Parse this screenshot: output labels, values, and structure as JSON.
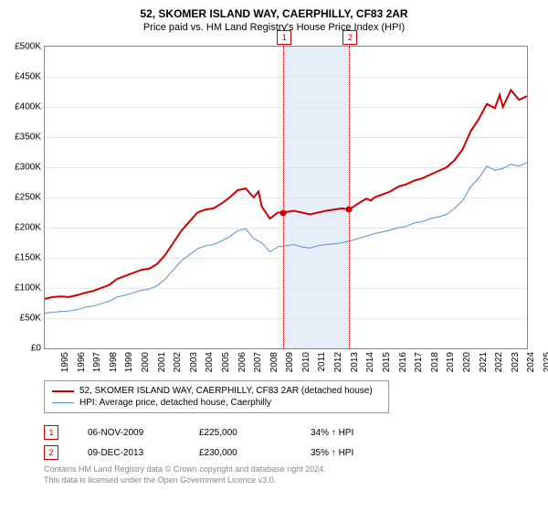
{
  "title": "52, SKOMER ISLAND WAY, CAERPHILLY, CF83 2AR",
  "subtitle": "Price paid vs. HM Land Registry's House Price Index (HPI)",
  "chart": {
    "type": "line",
    "ylim": [
      0,
      500000
    ],
    "ytick_step": 50000,
    "y_labels": [
      "£0",
      "£50K",
      "£100K",
      "£150K",
      "£200K",
      "£250K",
      "£300K",
      "£350K",
      "£400K",
      "£450K",
      "£500K"
    ],
    "x_years": [
      1995,
      1996,
      1997,
      1998,
      1999,
      2000,
      2001,
      2002,
      2003,
      2004,
      2005,
      2006,
      2007,
      2008,
      2009,
      2010,
      2011,
      2012,
      2013,
      2014,
      2015,
      2016,
      2017,
      2018,
      2019,
      2020,
      2021,
      2022,
      2023,
      2024,
      2025
    ],
    "x_min": 1995,
    "x_max": 2025,
    "highlight": {
      "from": 2009.85,
      "to": 2013.94,
      "color": "#e6eef7"
    },
    "grid_color": "#e5e5e5",
    "background_color": "#ffffff",
    "series": [
      {
        "name": "property",
        "label": "52, SKOMER ISLAND WAY, CAERPHILLY, CF83 2AR (detached house)",
        "color": "#cc0000",
        "width": 2,
        "data": [
          [
            1995,
            82000
          ],
          [
            1995.5,
            85000
          ],
          [
            1996,
            86000
          ],
          [
            1996.5,
            85000
          ],
          [
            1997,
            88000
          ],
          [
            1997.5,
            92000
          ],
          [
            1998,
            95000
          ],
          [
            1998.5,
            100000
          ],
          [
            1999,
            105000
          ],
          [
            1999.5,
            115000
          ],
          [
            2000,
            120000
          ],
          [
            2000.5,
            125000
          ],
          [
            2001,
            130000
          ],
          [
            2001.5,
            132000
          ],
          [
            2002,
            140000
          ],
          [
            2002.5,
            155000
          ],
          [
            2003,
            175000
          ],
          [
            2003.5,
            195000
          ],
          [
            2004,
            210000
          ],
          [
            2004.5,
            225000
          ],
          [
            2005,
            230000
          ],
          [
            2005.5,
            232000
          ],
          [
            2006,
            240000
          ],
          [
            2006.5,
            250000
          ],
          [
            2007,
            262000
          ],
          [
            2007.5,
            265000
          ],
          [
            2008,
            250000
          ],
          [
            2008.3,
            260000
          ],
          [
            2008.5,
            235000
          ],
          [
            2009,
            215000
          ],
          [
            2009.5,
            225000
          ],
          [
            2009.85,
            225000
          ],
          [
            2010.5,
            228000
          ],
          [
            2011,
            225000
          ],
          [
            2011.5,
            222000
          ],
          [
            2012,
            225000
          ],
          [
            2012.5,
            228000
          ],
          [
            2013,
            230000
          ],
          [
            2013.5,
            232000
          ],
          [
            2013.94,
            230000
          ],
          [
            2014.5,
            240000
          ],
          [
            2015,
            248000
          ],
          [
            2015.3,
            245000
          ],
          [
            2015.5,
            250000
          ],
          [
            2016,
            255000
          ],
          [
            2016.5,
            260000
          ],
          [
            2017,
            268000
          ],
          [
            2017.5,
            272000
          ],
          [
            2018,
            278000
          ],
          [
            2018.5,
            282000
          ],
          [
            2019,
            288000
          ],
          [
            2019.5,
            294000
          ],
          [
            2020,
            300000
          ],
          [
            2020.5,
            312000
          ],
          [
            2021,
            330000
          ],
          [
            2021.5,
            360000
          ],
          [
            2022,
            380000
          ],
          [
            2022.5,
            405000
          ],
          [
            2023,
            398000
          ],
          [
            2023.3,
            420000
          ],
          [
            2023.5,
            400000
          ],
          [
            2024,
            428000
          ],
          [
            2024.5,
            412000
          ],
          [
            2025,
            418000
          ]
        ]
      },
      {
        "name": "hpi",
        "label": "HPI: Average price, detached house, Caerphilly",
        "color": "#5b8fc7",
        "width": 1,
        "data": [
          [
            1995,
            58000
          ],
          [
            1995.5,
            60000
          ],
          [
            1996,
            61000
          ],
          [
            1996.5,
            62000
          ],
          [
            1997,
            64000
          ],
          [
            1997.5,
            68000
          ],
          [
            1998,
            70000
          ],
          [
            1998.5,
            74000
          ],
          [
            1999,
            78000
          ],
          [
            1999.5,
            85000
          ],
          [
            2000,
            88000
          ],
          [
            2000.5,
            92000
          ],
          [
            2001,
            96000
          ],
          [
            2001.5,
            98000
          ],
          [
            2002,
            104000
          ],
          [
            2002.5,
            115000
          ],
          [
            2003,
            130000
          ],
          [
            2003.5,
            145000
          ],
          [
            2004,
            155000
          ],
          [
            2004.5,
            165000
          ],
          [
            2005,
            170000
          ],
          [
            2005.5,
            172000
          ],
          [
            2006,
            178000
          ],
          [
            2006.5,
            185000
          ],
          [
            2007,
            195000
          ],
          [
            2007.5,
            198000
          ],
          [
            2008,
            182000
          ],
          [
            2008.5,
            175000
          ],
          [
            2009,
            160000
          ],
          [
            2009.5,
            168000
          ],
          [
            2010,
            170000
          ],
          [
            2010.5,
            172000
          ],
          [
            2011,
            168000
          ],
          [
            2011.5,
            166000
          ],
          [
            2012,
            170000
          ],
          [
            2012.5,
            172000
          ],
          [
            2013,
            173000
          ],
          [
            2013.5,
            175000
          ],
          [
            2014,
            178000
          ],
          [
            2014.5,
            182000
          ],
          [
            2015,
            186000
          ],
          [
            2015.5,
            190000
          ],
          [
            2016,
            193000
          ],
          [
            2016.5,
            196000
          ],
          [
            2017,
            200000
          ],
          [
            2017.5,
            202000
          ],
          [
            2018,
            208000
          ],
          [
            2018.5,
            210000
          ],
          [
            2019,
            215000
          ],
          [
            2019.5,
            218000
          ],
          [
            2020,
            222000
          ],
          [
            2020.5,
            232000
          ],
          [
            2021,
            245000
          ],
          [
            2021.5,
            268000
          ],
          [
            2022,
            282000
          ],
          [
            2022.5,
            302000
          ],
          [
            2023,
            295000
          ],
          [
            2023.5,
            298000
          ],
          [
            2024,
            305000
          ],
          [
            2024.5,
            302000
          ],
          [
            2025,
            308000
          ]
        ]
      }
    ],
    "transactions": [
      {
        "idx": "1",
        "year": 2009.85,
        "value": 225000,
        "date": "06-NOV-2009",
        "price": "£225,000",
        "vs_hpi": "34% ↑ HPI"
      },
      {
        "idx": "2",
        "year": 2013.94,
        "value": 230000,
        "date": "09-DEC-2013",
        "price": "£230,000",
        "vs_hpi": "35% ↑ HPI"
      }
    ]
  },
  "legend": {
    "series1": "52, SKOMER ISLAND WAY, CAERPHILLY, CF83 2AR (detached house)",
    "series2": "HPI: Average price, detached house, Caerphilly"
  },
  "footer": {
    "line1": "Contains HM Land Registry data © Crown copyright and database right 2024.",
    "line2": "This data is licensed under the Open Government Licence v3.0."
  }
}
